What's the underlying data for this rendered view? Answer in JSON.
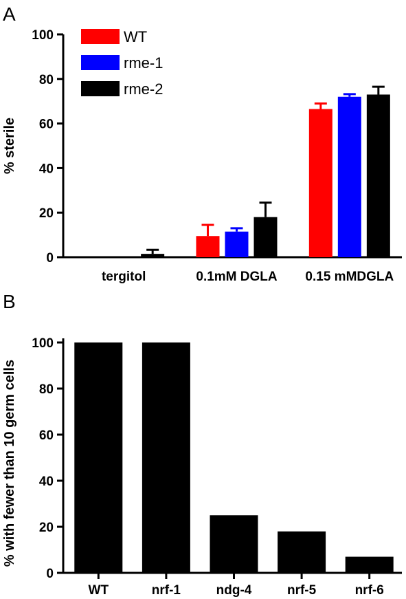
{
  "panel_a": {
    "letter": "A"
  },
  "panel_b": {
    "letter": "B"
  },
  "chart_data": [
    {
      "type": "bar",
      "panel": "A",
      "ylabel": "% sterile",
      "xlabel": "",
      "ylim": [
        0,
        100
      ],
      "yticks": [
        0,
        20,
        40,
        60,
        80,
        100
      ],
      "categories": [
        "tergitol",
        "0.1mM DGLA",
        "0.15 mMDGLA"
      ],
      "legend_position": "top-left",
      "series": [
        {
          "name": "WT",
          "color": "#ff0000",
          "values": [
            0,
            9.5,
            66.5
          ],
          "errors": [
            0,
            5,
            2.5
          ]
        },
        {
          "name": "rme-1",
          "color": "#0000ff",
          "values": [
            0,
            11.5,
            72
          ],
          "errors": [
            0,
            1.5,
            1.2
          ]
        },
        {
          "name": "rme-2",
          "color": "#000000",
          "values": [
            1.5,
            18,
            73
          ],
          "errors": [
            1.8,
            6.5,
            3.5
          ]
        }
      ]
    },
    {
      "type": "bar",
      "panel": "B",
      "ylabel": "%  with fewer than 10 germ cells",
      "xlabel": "",
      "ylim": [
        0,
        100
      ],
      "yticks": [
        0,
        20,
        40,
        60,
        80,
        100
      ],
      "categories": [
        "WT",
        "nrf-1",
        "ndg-4",
        "nrf-5",
        "nrf-6"
      ],
      "series": [
        {
          "color": "#000000",
          "values": [
            100,
            100,
            25,
            18,
            7
          ]
        }
      ]
    }
  ]
}
